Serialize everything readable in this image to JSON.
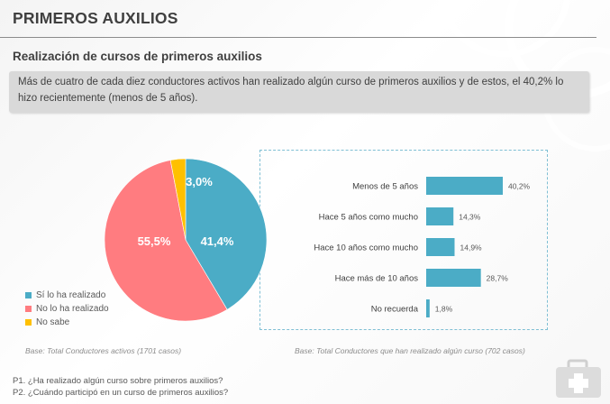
{
  "page": {
    "title": "PRIMEROS AUXILIOS",
    "subtitle": "Realización de cursos de primeros auxilios",
    "summary": "Más de cuatro de cada diez  conductores activos han realizado algún curso de primeros auxilios y de estos, el 40,2% lo hizo recientemente (menos de 5 años).",
    "base_left": "Base: Total Conductores  activos (1701 casos)",
    "base_right": "Base: Total Conductores  que han realizado algún curso (702 casos)",
    "questions": [
      "P1. ¿Ha realizado algún curso sobre primeros auxilios?",
      "P2. ¿Cuándo participó en un curso de primeros auxilios?"
    ],
    "decorative_icon": "first-aid-kit-icon"
  },
  "chart_data": [
    {
      "type": "pie",
      "labels": [
        "Sí lo ha realizado",
        "No lo ha realizado",
        "No sabe"
      ],
      "values": [
        41.4,
        55.5,
        3.0
      ],
      "data_labels": [
        "41,4%",
        "55,5%",
        "3,0%"
      ],
      "colors": [
        "#4bacc6",
        "#ff7c80",
        "#ffc000"
      ],
      "legend_position": "bottom-left"
    },
    {
      "type": "bar",
      "orientation": "horizontal",
      "categories": [
        "Menos de 5 años",
        "Hace 5 años como mucho",
        "Hace 10 años como mucho",
        "Hace más de 10 años",
        "No recuerda"
      ],
      "values": [
        40.2,
        14.3,
        14.9,
        28.7,
        1.8
      ],
      "data_labels": [
        "40,2%",
        "14,3%",
        "14,9%",
        "28,7%",
        "1,8%"
      ],
      "color": "#4bacc6",
      "xlim": [
        0,
        45
      ]
    }
  ]
}
